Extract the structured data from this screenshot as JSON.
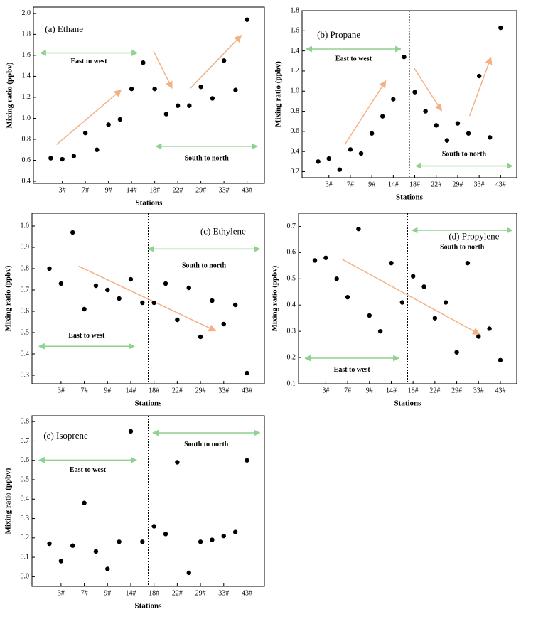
{
  "chart_data": [
    {
      "type": "scatter",
      "title": "(a) Ethane",
      "xlabel": "Stations",
      "ylabel": "Mixing ratio (ppbv)",
      "categories": [
        null,
        "3#",
        null,
        "7#",
        null,
        "9#",
        null,
        "14#",
        null,
        "18#",
        null,
        "22#",
        null,
        "29#",
        null,
        "33#",
        null,
        "43#"
      ],
      "values": [
        0.62,
        0.61,
        0.64,
        0.86,
        0.7,
        0.94,
        0.99,
        1.28,
        1.53,
        1.28,
        1.04,
        1.12,
        1.12,
        1.3,
        1.19,
        1.55,
        1.27,
        1.94
      ],
      "color": "#000000",
      "ylim": [
        0.38,
        2.06
      ],
      "yticks": [
        0.4,
        0.6,
        0.8,
        {
          "value": 1,
          "label": "1.0"
        },
        1.2,
        1.4,
        1.6,
        1.8,
        {
          "value": 2,
          "label": "2.0"
        }
      ],
      "annotations": [
        "East to west",
        "South to north"
      ]
    },
    {
      "type": "scatter",
      "title": "(b) Propane",
      "xlabel": "Stations",
      "ylabel": "Mixing ratio (ppbv)",
      "categories": [
        null,
        "3#",
        null,
        "7#",
        null,
        "9#",
        null,
        "14#",
        null,
        "18#",
        null,
        "22#",
        null,
        "29#",
        null,
        "33#",
        null,
        "43#"
      ],
      "values": [
        0.3,
        0.33,
        0.22,
        0.42,
        0.38,
        0.58,
        0.75,
        0.92,
        1.34,
        0.99,
        0.8,
        0.66,
        0.51,
        0.68,
        0.58,
        1.15,
        0.54,
        1.63
      ],
      "color": "#000000",
      "ylim": [
        0.14,
        1.8
      ],
      "yticks": [
        0.2,
        0.4,
        0.6,
        0.8,
        {
          "value": 1,
          "label": "1.0"
        },
        1.2,
        1.4,
        1.6,
        1.8
      ],
      "annotations": [
        "East to west",
        "South to north"
      ]
    },
    {
      "type": "scatter",
      "title": "(c) Ethylene",
      "xlabel": "Stations",
      "ylabel": "Mixing ratio (ppbv)",
      "categories": [
        null,
        "3#",
        null,
        "7#",
        null,
        "9#",
        null,
        "14#",
        null,
        "18#",
        null,
        "22#",
        null,
        "29#",
        null,
        "33#",
        null,
        "43#"
      ],
      "values": [
        0.8,
        0.73,
        0.97,
        0.61,
        0.72,
        0.7,
        0.66,
        0.75,
        0.64,
        0.64,
        0.73,
        0.56,
        0.71,
        0.48,
        0.65,
        0.54,
        0.63,
        0.31
      ],
      "color": "#000000",
      "ylim": [
        0.26,
        1.06
      ],
      "yticks": [
        0.3,
        0.4,
        0.5,
        0.6,
        0.7,
        0.8,
        0.9,
        {
          "value": 1,
          "label": "1.0"
        }
      ],
      "annotations": [
        "South to north",
        "East to west"
      ]
    },
    {
      "type": "scatter",
      "title": "(d) Propylene",
      "xlabel": "Stations",
      "ylabel": "Mixing ratio (ppbv)",
      "categories": [
        null,
        "3#",
        null,
        "7#",
        null,
        "9#",
        null,
        "14#",
        null,
        "18#",
        null,
        "22#",
        null,
        "29#",
        null,
        "33#",
        null,
        "43#"
      ],
      "values": [
        0.57,
        0.58,
        0.5,
        0.43,
        0.69,
        0.36,
        0.3,
        0.56,
        0.41,
        0.51,
        0.47,
        0.35,
        0.41,
        0.22,
        0.56,
        0.28,
        0.31,
        0.19
      ],
      "color": "#000000",
      "ylim": [
        0.1,
        0.75
      ],
      "yticks": [
        0.1,
        0.2,
        0.3,
        0.4,
        0.5,
        0.6,
        0.7
      ],
      "annotations": [
        "South to north",
        "East to west"
      ]
    },
    {
      "type": "scatter",
      "title": "(e) Isoprene",
      "xlabel": "Stations",
      "ylabel": "Mixing ratio (ppbv)",
      "categories": [
        null,
        "3#",
        null,
        "7#",
        null,
        "9#",
        null,
        "14#",
        null,
        "18#",
        null,
        "22#",
        null,
        "29#",
        null,
        "33#",
        null,
        "43#"
      ],
      "values": [
        0.17,
        0.08,
        0.16,
        0.38,
        0.13,
        0.04,
        0.18,
        0.75,
        0.18,
        0.26,
        0.22,
        0.59,
        0.02,
        0.18,
        0.19,
        0.21,
        0.23,
        0.6
      ],
      "color": "#000000",
      "ylim": [
        -0.05,
        0.83
      ],
      "yticks": [
        {
          "value": 0,
          "label": "0.0"
        },
        0.1,
        0.2,
        0.3,
        0.4,
        0.5,
        0.6,
        0.7,
        0.8
      ],
      "annotations": [
        "East to west",
        "South to north"
      ]
    }
  ]
}
